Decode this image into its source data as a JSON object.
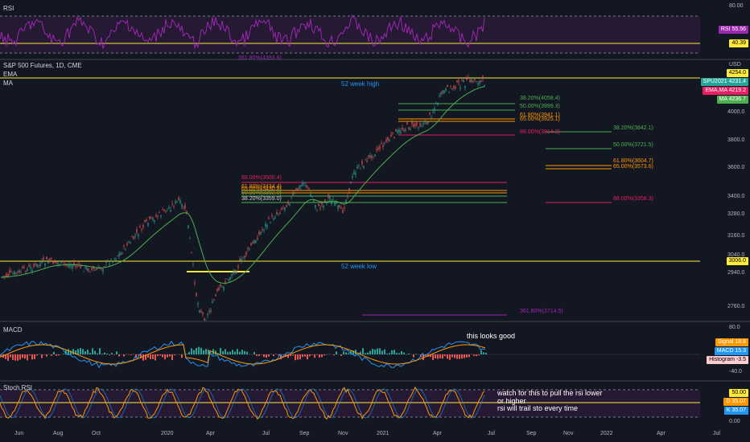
{
  "colors": {
    "bg": "#131722",
    "rsi": "#9c27b0",
    "ema": "#4caf50",
    "ma": "#2196f3",
    "fib": "#ff9800",
    "fibRed": "#e91e63",
    "fibGreen": "#4caf50",
    "yellow": "#ffeb3b",
    "text": "#d1d4dc",
    "up": "#26a69a",
    "down": "#ef5350"
  },
  "rsi": {
    "title": "RSI",
    "levels": [
      "80.00",
      "40.00"
    ],
    "tag_label": "RSI",
    "tag_value": "55.56",
    "line_value": "40.39"
  },
  "main": {
    "title": "S&P 500 Futures, 1D, CME",
    "ema_label": "EMA",
    "ma_label": "MA",
    "currency": "USD",
    "prices": [
      "4254.0",
      "4000.0",
      "3800.0",
      "3600.0",
      "3400.0",
      "3280.0",
      "3160.0",
      "3040.0",
      "3006.0",
      "2940.0",
      "2760.0"
    ],
    "price_tags": [
      {
        "label": "SPU2021",
        "value": "4231.4"
      },
      {
        "label": "EMA,MA",
        "value": "4219.2"
      },
      {
        "label": "MA",
        "value": "4236.7"
      }
    ],
    "high_label": "52 week high",
    "low_label": "52 week low",
    "fib_labels": [
      "361.80%(4393.6)",
      "38.20%(4058.4)",
      "50.00%(3999.3)",
      "61.80%(3941.1)",
      "65.00%(3925.1)",
      "88.00%(3814.9)",
      "38.20%(3842.1)",
      "50.00%(3721.5)",
      "61.80%(3604.7)",
      "65.00%(3573.6)",
      "88.00%(3358.3)",
      "88.00%(3500.4)",
      "61.80%(3434.4)",
      "65.00%(3430.8)",
      "50.00%(3392.0)",
      "38.20%(3359.0)",
      "361.80%(2714.5)"
    ]
  },
  "macd": {
    "title": "MACD",
    "levels": [
      "80.0",
      "-40.0"
    ],
    "annotation": "this looks good",
    "tags": [
      {
        "label": "Signal",
        "value": "18.8"
      },
      {
        "label": "MACD",
        "value": "15.3"
      },
      {
        "label": "Histogram",
        "value": "-3.5"
      }
    ]
  },
  "stoch": {
    "title": "Stoch RSI",
    "levels": [
      "50.00",
      "0.00"
    ],
    "annotation1": "watch for this to pull the rsi lower",
    "annotation2": "or higher",
    "annotation3": "rsi will trail sto every time",
    "tags": [
      {
        "label": "D",
        "value": "35.07"
      },
      {
        "label": "K",
        "value": "35.07"
      }
    ],
    "top_tag": "50.00"
  },
  "time_axis": [
    "Jun",
    "Aug",
    "Oct",
    "2020",
    "Apr",
    "Jul",
    "Sep",
    "Nov",
    "2021",
    "Apr",
    "Jul",
    "Sep",
    "Nov",
    "2022",
    "Apr",
    "Jul"
  ]
}
